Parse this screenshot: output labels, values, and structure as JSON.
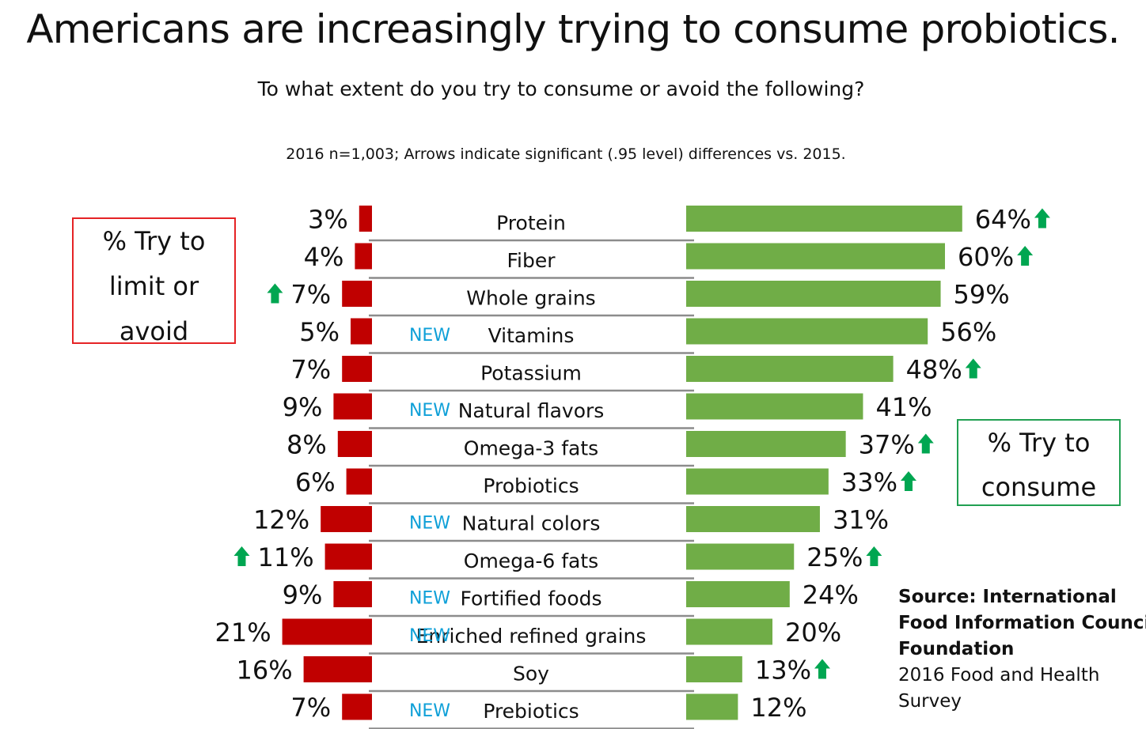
{
  "title": "Americans are increasingly trying to consume probiotics.",
  "subtitle": "To what extent do you try to consume or avoid the following?",
  "note": "2016 n=1,003; Arrows indicate significant (.95 level) differences vs. 2015.",
  "legend_left": [
    "% Try to",
    "limit or",
    "avoid"
  ],
  "legend_right": [
    "% Try to",
    "consume"
  ],
  "source": {
    "bold_lines": [
      "Source: International",
      "Food Information Council",
      "Foundation"
    ],
    "lines": [
      "2016 Food and Health",
      "Survey"
    ]
  },
  "colors": {
    "avoid": "#c00000",
    "consume": "#70ad47",
    "arrow": "#00a651",
    "new": "#0fa0d8",
    "divider": "#8c8c8c"
  },
  "chart_data": {
    "type": "bar",
    "title": "Americans are increasingly trying to consume probiotics.",
    "series_names": [
      "% Try to limit or avoid",
      "% Try to consume"
    ],
    "categories": [
      "Protein",
      "Fiber",
      "Whole grains",
      "Vitamins",
      "Potassium",
      "Natural flavors",
      "Omega-3 fats",
      "Probiotics",
      "Natural colors",
      "Omega-6 fats",
      "Fortified foods",
      "Enriched refined grains",
      "Soy",
      "Prebiotics"
    ],
    "new_label": "NEW",
    "is_new": [
      false,
      false,
      false,
      true,
      false,
      true,
      false,
      false,
      true,
      false,
      true,
      true,
      false,
      true
    ],
    "avoid": [
      3,
      4,
      7,
      5,
      7,
      9,
      8,
      6,
      12,
      11,
      9,
      21,
      16,
      7
    ],
    "consume": [
      64,
      60,
      59,
      56,
      48,
      41,
      37,
      33,
      31,
      25,
      24,
      20,
      13,
      12
    ],
    "avoid_arrow_up": [
      false,
      false,
      true,
      false,
      false,
      false,
      false,
      false,
      false,
      true,
      false,
      false,
      false,
      false
    ],
    "consume_arrow_up": [
      true,
      true,
      false,
      false,
      true,
      false,
      true,
      true,
      false,
      true,
      false,
      false,
      true,
      false
    ],
    "unit": "%"
  }
}
